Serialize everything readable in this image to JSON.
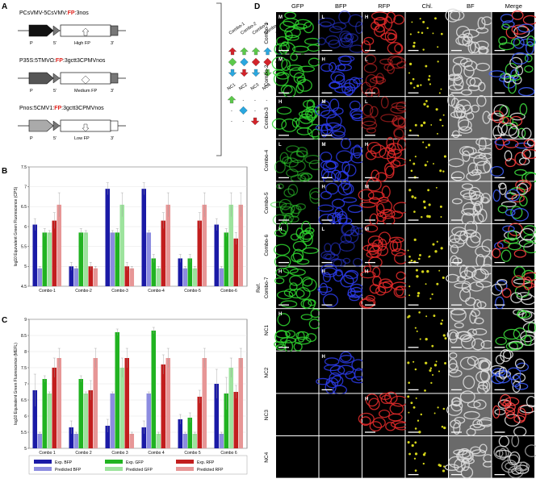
{
  "panelA": {
    "letter": "A",
    "constructs": [
      {
        "prefix": "PCsVMV-5CsVMV:",
        "fp": "FP",
        "suffix": ":3nos",
        "level": "High FP"
      },
      {
        "prefix": "P35S:5TMVΩ:",
        "fp": "FP",
        "suffix": ":3gctt3CPMVnos",
        "level": "Medium FP"
      },
      {
        "prefix": "Pnos:5CMV1:",
        "fp": "FP",
        "suffix": ":3gctt3CPMVnos",
        "level": "Low FP"
      }
    ],
    "part_labels": {
      "p": "P",
      "five": "5'",
      "three": "3'"
    },
    "combos": [
      "Combo-1",
      "Combo-2",
      "Combo-3",
      "Combo-4",
      "Combo-5",
      "Combo-6",
      "Combo-7"
    ],
    "controls": [
      "NC1",
      "NC2",
      "NC3",
      "NC4"
    ],
    "dash": "-",
    "colors": {
      "green": "#5cc94a",
      "blue": "#2aa7df",
      "red": "#d2232a"
    }
  },
  "panelB": {
    "letter": "B",
    "chart_data": {
      "type": "bar",
      "ylabel": "log10 Equivalent Green Fluorescence (CPS)",
      "ylim": [
        4.5,
        7.5
      ],
      "yticks": [
        "4.5",
        "5",
        "5.5",
        "6",
        "6.5",
        "7",
        "7.5"
      ],
      "categories": [
        "Combo-1",
        "Combo-2",
        "Combo-3",
        "Combo-4",
        "Combo-5",
        "Combo-6"
      ],
      "series": [
        {
          "name": "Exp. BFP",
          "color": "#1a1aa6",
          "values": [
            6.05,
            5.0,
            6.95,
            6.95,
            5.2,
            6.05
          ],
          "err": [
            0.15,
            0.1,
            0.15,
            0.15,
            0.1,
            0.15
          ]
        },
        {
          "name": "Predicted BFP",
          "color": "#8c8ce0",
          "values": [
            4.95,
            4.95,
            5.85,
            5.85,
            4.95,
            4.95
          ],
          "err": [
            0.05,
            0.05,
            0.05,
            0.05,
            0.05,
            0.05
          ]
        },
        {
          "name": "Exp. GFP",
          "color": "#21b321",
          "values": [
            5.85,
            5.85,
            5.85,
            5.2,
            5.2,
            5.85
          ],
          "err": [
            0.1,
            0.1,
            0.1,
            0.1,
            0.1,
            0.1
          ]
        },
        {
          "name": "Predicted GFP",
          "color": "#9de39d",
          "values": [
            5.85,
            5.85,
            6.55,
            4.95,
            4.95,
            6.55
          ],
          "err": [
            0.05,
            0.05,
            0.3,
            0.05,
            0.05,
            0.3
          ]
        },
        {
          "name": "Exp. RFP",
          "color": "#c21e1e",
          "values": [
            6.15,
            5.0,
            5.0,
            6.15,
            6.15,
            5.7
          ],
          "err": [
            0.2,
            0.1,
            0.1,
            0.2,
            0.2,
            0.15
          ]
        },
        {
          "name": "Predicted RFP",
          "color": "#e79696",
          "values": [
            6.55,
            4.95,
            4.95,
            6.55,
            6.55,
            6.55
          ],
          "err": [
            0.3,
            0.05,
            0.05,
            0.3,
            0.3,
            0.3
          ]
        }
      ]
    }
  },
  "panelC": {
    "letter": "C",
    "chart_data": {
      "type": "bar",
      "ylabel": "log10 Equivalent Green Fluorescence (MEFL)",
      "ylim": [
        5,
        9
      ],
      "yticks": [
        "5",
        "5.5",
        "6",
        "6.5",
        "7",
        "7.5",
        "8",
        "8.5",
        "9"
      ],
      "categories": [
        "Combo 1",
        "Combo 2",
        "Combo 3",
        "Combo 4",
        "Combo 5",
        "Combo 6"
      ],
      "series": [
        {
          "name": "Exp. BFP",
          "color": "#1a1aa6",
          "values": [
            6.8,
            5.65,
            5.7,
            5.65,
            5.9,
            7.0
          ],
          "err": [
            0.5,
            0.2,
            0.2,
            0.2,
            0.15,
            0.45
          ]
        },
        {
          "name": "Predicted BFP",
          "color": "#8c8ce0",
          "values": [
            5.45,
            5.45,
            6.7,
            6.7,
            5.45,
            5.45
          ],
          "err": [
            0.05,
            0.05,
            0.05,
            0.05,
            0.05,
            0.05
          ]
        },
        {
          "name": "Exp. GFP",
          "color": "#21b321",
          "values": [
            7.15,
            7.15,
            8.6,
            8.65,
            5.95,
            6.7
          ],
          "err": [
            0.1,
            0.1,
            0.1,
            0.1,
            0.15,
            0.5
          ]
        },
        {
          "name": "Predicted GFP",
          "color": "#9de39d",
          "values": [
            6.7,
            6.7,
            7.5,
            5.45,
            5.45,
            7.5
          ],
          "err": [
            0.05,
            0.05,
            0.3,
            0.05,
            0.05,
            0.3
          ]
        },
        {
          "name": "Exp. RFP",
          "color": "#c21e1e",
          "values": [
            7.5,
            6.8,
            7.8,
            7.6,
            6.6,
            6.75
          ],
          "err": [
            0.3,
            0.3,
            0.3,
            0.3,
            0.2,
            0.2
          ]
        },
        {
          "name": "Predicted RFP",
          "color": "#e79696",
          "values": [
            7.8,
            7.8,
            5.45,
            7.8,
            7.8,
            7.8
          ],
          "err": [
            0.3,
            0.3,
            0.05,
            0.3,
            0.3,
            0.3
          ]
        }
      ]
    }
  },
  "panelD": {
    "letter": "D",
    "columns": [
      "GFP",
      "BFP",
      "RFP",
      "Chl.",
      "BF",
      "Merge"
    ],
    "rows": [
      "Combo-1",
      "Combo-2",
      "Combo-3",
      "Combo-4",
      "Combo-5",
      "Combo-6",
      "Combo-7",
      "NC1",
      "NC2",
      "NC3",
      "NC4"
    ],
    "ref_label": "Ref.",
    "levels": [
      [
        "M",
        "L",
        "H"
      ],
      [
        "M",
        "H",
        "L"
      ],
      [
        "H",
        "M",
        "L"
      ],
      [
        "L",
        "M",
        "H"
      ],
      [
        "L",
        "H",
        "M"
      ],
      [
        "H",
        "L",
        "M"
      ],
      [
        "H",
        "H",
        "H"
      ],
      [
        "H",
        "",
        ""
      ],
      [
        "",
        "H",
        ""
      ],
      [
        "",
        "",
        "H"
      ],
      [
        "",
        "",
        ""
      ]
    ]
  }
}
